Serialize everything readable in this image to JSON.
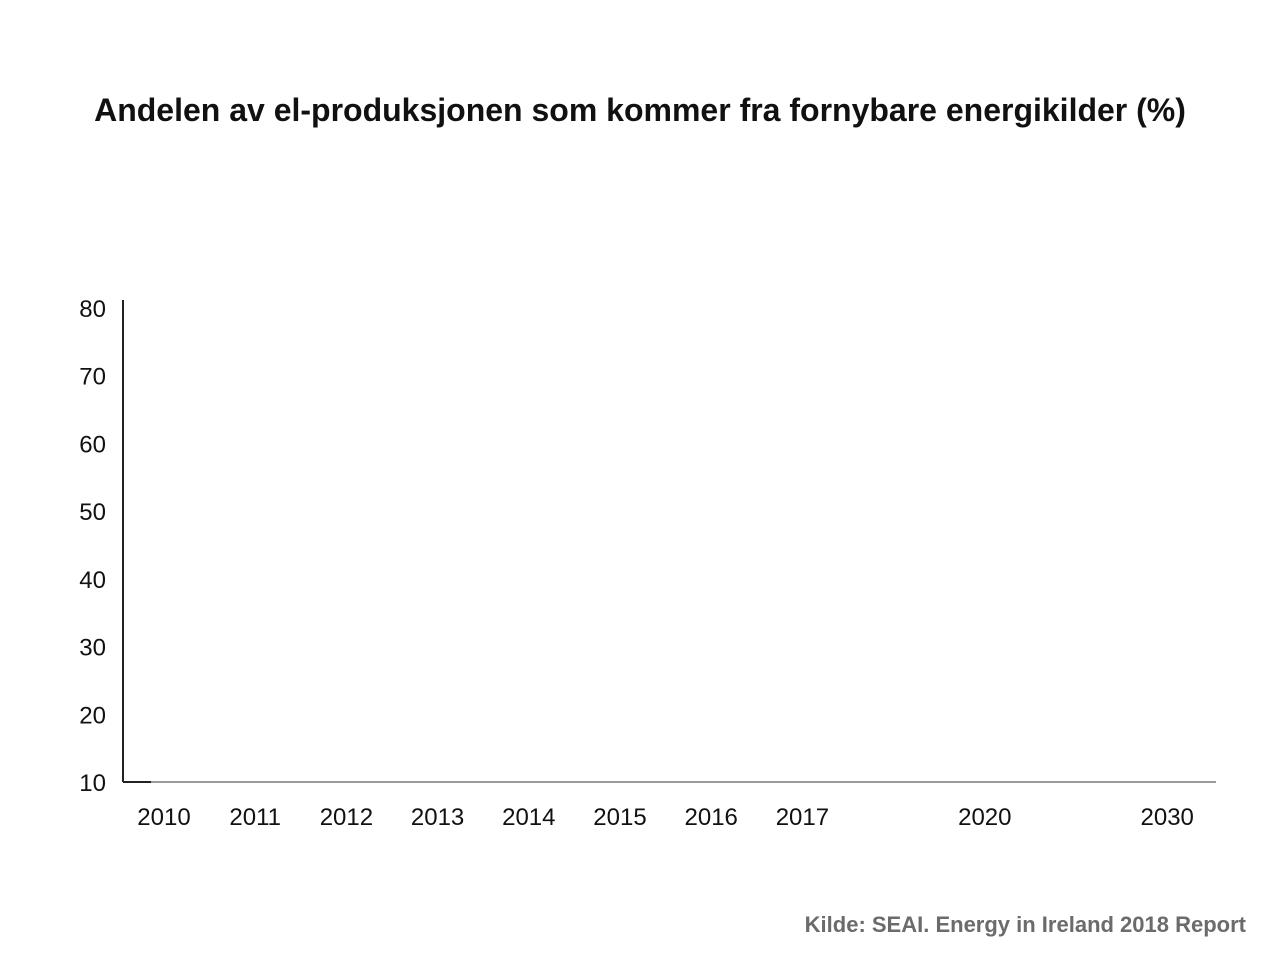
{
  "chart_data": {
    "type": "bar",
    "title": "Andelen av el-produksjonen som kommer fra fornybare energikilder (%)",
    "xlabel": "",
    "ylabel": "",
    "categories": [
      "2010",
      "2011",
      "2012",
      "2013",
      "2014",
      "2015",
      "2016",
      "2017",
      "2020",
      "2030"
    ],
    "yticks": [
      "80",
      "70",
      "60",
      "50",
      "40",
      "30",
      "20",
      "10"
    ],
    "ylim": [
      10,
      80
    ],
    "series": [],
    "grid": false,
    "legend": "none",
    "colors": {
      "axis": "#222222",
      "text": "#111111",
      "source": "#6b6b6b"
    }
  },
  "source": "Kilde: SEAI. Energy in Ireland 2018 Report"
}
